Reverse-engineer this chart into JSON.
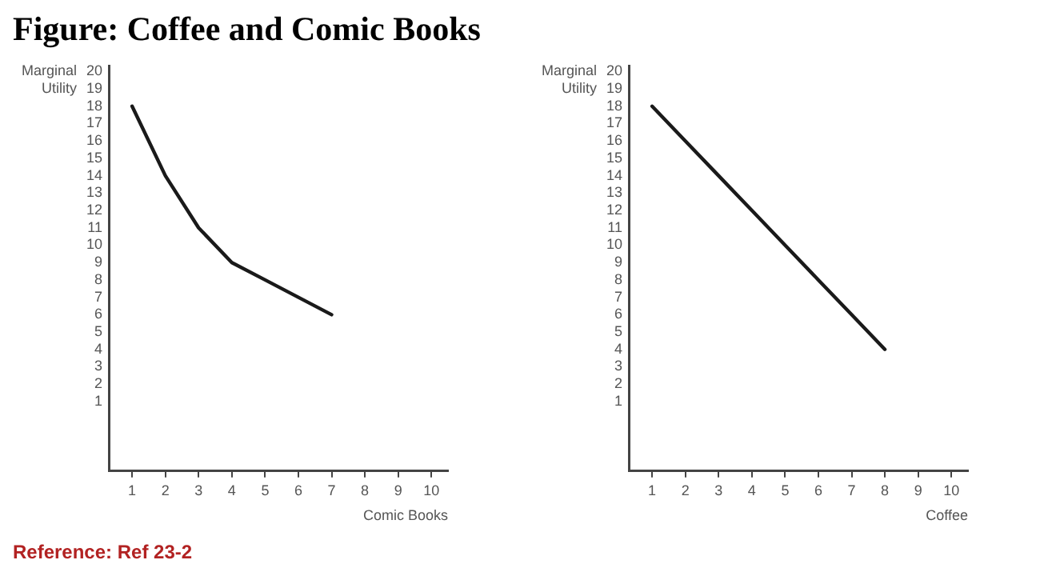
{
  "chart_data": [
    {
      "type": "line",
      "title": "Figure: Coffee and Comic Books",
      "xlabel": "Comic Books",
      "ylabel": "Marginal Utility",
      "x": [
        1,
        2,
        3,
        4,
        5,
        6,
        7
      ],
      "series": [
        {
          "color": "#1a1a1a",
          "values": [
            18,
            14,
            11,
            9,
            8,
            7,
            6
          ]
        }
      ],
      "xlim": [
        0.3,
        10.5
      ],
      "xticks": [
        1,
        2,
        3,
        4,
        5,
        6,
        7,
        8,
        9,
        10
      ],
      "ylim": [
        -3,
        20.3
      ],
      "yticks": [
        1,
        2,
        3,
        4,
        5,
        6,
        7,
        8,
        9,
        10,
        11,
        12,
        13,
        14,
        15,
        16,
        17,
        18,
        19,
        20
      ],
      "grid": false,
      "legend": false,
      "marker": "none",
      "line_style": "solid",
      "annotations": [
        "Reference: Ref 23-2"
      ]
    },
    {
      "type": "line",
      "xlabel": "Coffee",
      "ylabel": "Marginal Utility",
      "x": [
        1,
        2,
        3,
        4,
        5,
        6,
        7,
        8
      ],
      "series": [
        {
          "color": "#1a1a1a",
          "values": [
            18,
            16,
            14,
            12,
            10,
            8,
            6,
            4
          ]
        }
      ],
      "xlim": [
        0.3,
        10.5
      ],
      "xticks": [
        1,
        2,
        3,
        4,
        5,
        6,
        7,
        8,
        9,
        10
      ],
      "ylim": [
        -3,
        20.3
      ],
      "yticks": [
        1,
        2,
        3,
        4,
        5,
        6,
        7,
        8,
        9,
        10,
        11,
        12,
        13,
        14,
        15,
        16,
        17,
        18,
        19,
        20
      ],
      "grid": false,
      "legend": false,
      "marker": "none",
      "line_style": "solid"
    }
  ]
}
